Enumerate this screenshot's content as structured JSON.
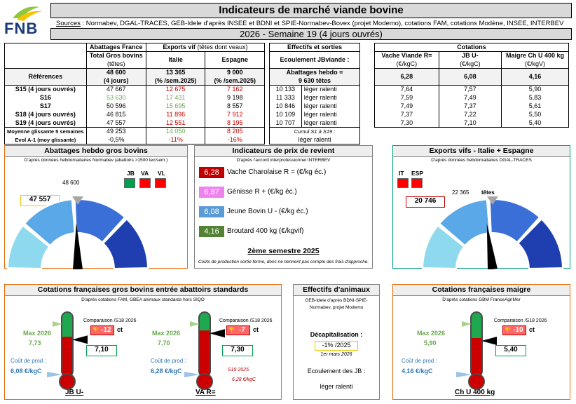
{
  "header": {
    "logo_text": "FNB",
    "title": "Indicateurs de marché viande bovine",
    "sources_label": "Sources",
    "sources_text": " : Normabev, DGAL-TRACES, GEB-Idele d'après INSEE et BDNI et SPIE-Normabev-Bovex (projet Modemo), cotations FAM, cotations Modène, INSEE, INTERBEV",
    "week": "2026 - Semaine 19 (4 jours ouvrés)"
  },
  "table1": {
    "h_abattages": "Abattages France",
    "h_exports": "Exports vif",
    "h_exports_sub": " (têtes dont veaux)",
    "h_total": "Total Gros bovins",
    "h_total_unit": "(têtes)",
    "h_italie": "Italie",
    "h_espagne": "Espagne",
    "ref_label": "Références",
    "ref_total": "48 600",
    "ref_total_sub": "(4 jours)",
    "ref_italie": "13 365",
    "ref_italie_sub": "(% /sem.2025)",
    "ref_espagne": "9 000",
    "ref_espagne_sub": "(% /sem.2025)",
    "rows": [
      {
        "label": "S15 (4 jours ouvrés)",
        "total": "47 667",
        "italie": "12 675",
        "espagne": "7 162"
      },
      {
        "label": "S16",
        "total": "53 630",
        "italie": "17 431",
        "espagne": "9 198"
      },
      {
        "label": "S17",
        "total": "50 596",
        "italie": "15 695",
        "espagne": "8 557"
      },
      {
        "label": "S18 (4 jours ouvrés)",
        "total": "46 815",
        "italie": "11 896",
        "espagne": "7 912"
      },
      {
        "label": "S19 (4 jours ouvrés)",
        "total": "47 557",
        "italie": "12 551",
        "espagne": "8 195"
      }
    ],
    "moy_label": "Moyenne glissante 5 semaines",
    "moy_total": "49 253",
    "moy_italie": "14 050",
    "moy_espagne": "8 205",
    "evol_label": "Evol A-1 (moy glissante)",
    "evol_total": "-0,5%",
    "evol_italie": "-11%",
    "evol_espagne": "-16%"
  },
  "table2": {
    "h": "Effectifs et sorties",
    "h_sub": "Ecoulement JBviande :",
    "ref": "Abattages hebdo =",
    "ref2": "9 630 têtes",
    "rows": [
      {
        "n": "10 133",
        "t": "léger ralenti"
      },
      {
        "n": "11 333",
        "t": "léger ralenti"
      },
      {
        "n": "10 846",
        "t": "léger ralenti"
      },
      {
        "n": "10 109",
        "t": "léger ralenti"
      },
      {
        "n": "10 707",
        "t": "léger ralenti"
      }
    ],
    "cumul": "Cumul S1 à S19 :",
    "cumul_val": "léger ralenti"
  },
  "table3": {
    "h": "Cotations",
    "c1": "Vache Viande R=",
    "c1u": "(€/kgC)",
    "c2": "JB U-",
    "c2u": "(€/kgC)",
    "c3": "Maigre Ch U 400 kg",
    "c3u": "(€/kgV)",
    "ref": [
      "6,28",
      "6,08",
      "4,16"
    ],
    "rows": [
      [
        "7,64",
        "7,57",
        "5,90"
      ],
      [
        "7,59",
        "7,49",
        "5,83"
      ],
      [
        "7,49",
        "7,37",
        "5,61"
      ],
      [
        "7,37",
        "7,22",
        "5,50"
      ],
      [
        "7,30",
        "7,10",
        "5,40"
      ]
    ]
  },
  "panel_abattages": {
    "title": "Abattages hebdo gros bovins",
    "sub": "D'après données hebdomadaires Normabev (abattoirs >1500 tec/sem.)",
    "flags": [
      "JB",
      "VA",
      "VL"
    ],
    "ref": "48 600",
    "value": "47 557",
    "gauge_level": 0.49
  },
  "panel_prix": {
    "title": "Indicateurs de prix de revient",
    "sub": "D'après l'accord interprofessionnel INTERBEV",
    "items": [
      {
        "val": "6,28",
        "label": "Vache Charolaise R = (€/kg éc.)",
        "color": "#c00000"
      },
      {
        "val": "6,87",
        "label": "Génisse R + (€/kg éc.)",
        "color": "#ee82ee"
      },
      {
        "val": "6,08",
        "label": "Jeune Bovin U - (€/kg éc.)",
        "color": "#5b9bd5"
      },
      {
        "val": "4,16",
        "label": "Broutard 400 kg (€/kgvif)",
        "color": "#548235"
      }
    ],
    "period": "2ème semestre 2025",
    "note": "Coûts de production sortie ferme, donc ne tiennent pas compte des frais d'approche."
  },
  "panel_exports": {
    "title": "Exports vifs - Italie + Espagne",
    "sub": "D'après données hebdomadaires DGAL-TRACES",
    "flags": [
      "IT",
      "ESP"
    ],
    "ref": "22 365",
    "ref_unit": "têtes",
    "value": "20 746",
    "gauge_level": 0.46
  },
  "panel_jb": {
    "title": "Cotations françaises gros bovins entrée abattoirs standards",
    "sub": "D'après cotations FAM, GBEA animaux standards hors SIQO",
    "jb": {
      "max_label": "Max 2026",
      "max_val": "7,73",
      "comp_label": "Comparaison /S18 2026",
      "comp_val": "-12",
      "comp_unit": "ct",
      "value": "7,10",
      "cout_label": "Coût de prod :",
      "cout_val": "6,08 €/kgC",
      "name": "JB U-",
      "level": 0.62
    },
    "va": {
      "max_label": "Max 2026",
      "max_val": "7,70",
      "comp_label": "Comparaison /S18 2026",
      "comp_val": "-7",
      "comp_unit": "ct",
      "value": "7,30",
      "cout_label": "Coût de prod :",
      "cout_val": "6,28 €/kgC",
      "name": "VA R=",
      "level": 0.72,
      "s19_label": "S19 2025",
      "s19_val": "6,28 €/kgC"
    }
  },
  "panel_effectifs": {
    "title": "Effectifs d'animaux",
    "sub": "GEB-Idele d'après BDNI-SPIE-Normabev, projet Modemo",
    "decap_label": "Décapitalisation :",
    "decap_val": "-1% /2025",
    "decap_date": "1er mars 2026",
    "ecoul_label": "Ecoulement des JB :",
    "ecoul_val": "léger ralenti"
  },
  "panel_maigre": {
    "title": "Cotations françaises maigre",
    "sub": "D'après cotations GBM FranceAgriMer",
    "max_label": "Max 2026",
    "max_val": "5,90",
    "comp_label": "Comparaison /S18 2026",
    "comp_val": "-10",
    "comp_unit": "ct",
    "value": "5,40",
    "cout_label": "Coût de prod :",
    "cout_val": "4,16 €/kgC",
    "name": "Ch U 400 kg",
    "level": 0.6
  }
}
